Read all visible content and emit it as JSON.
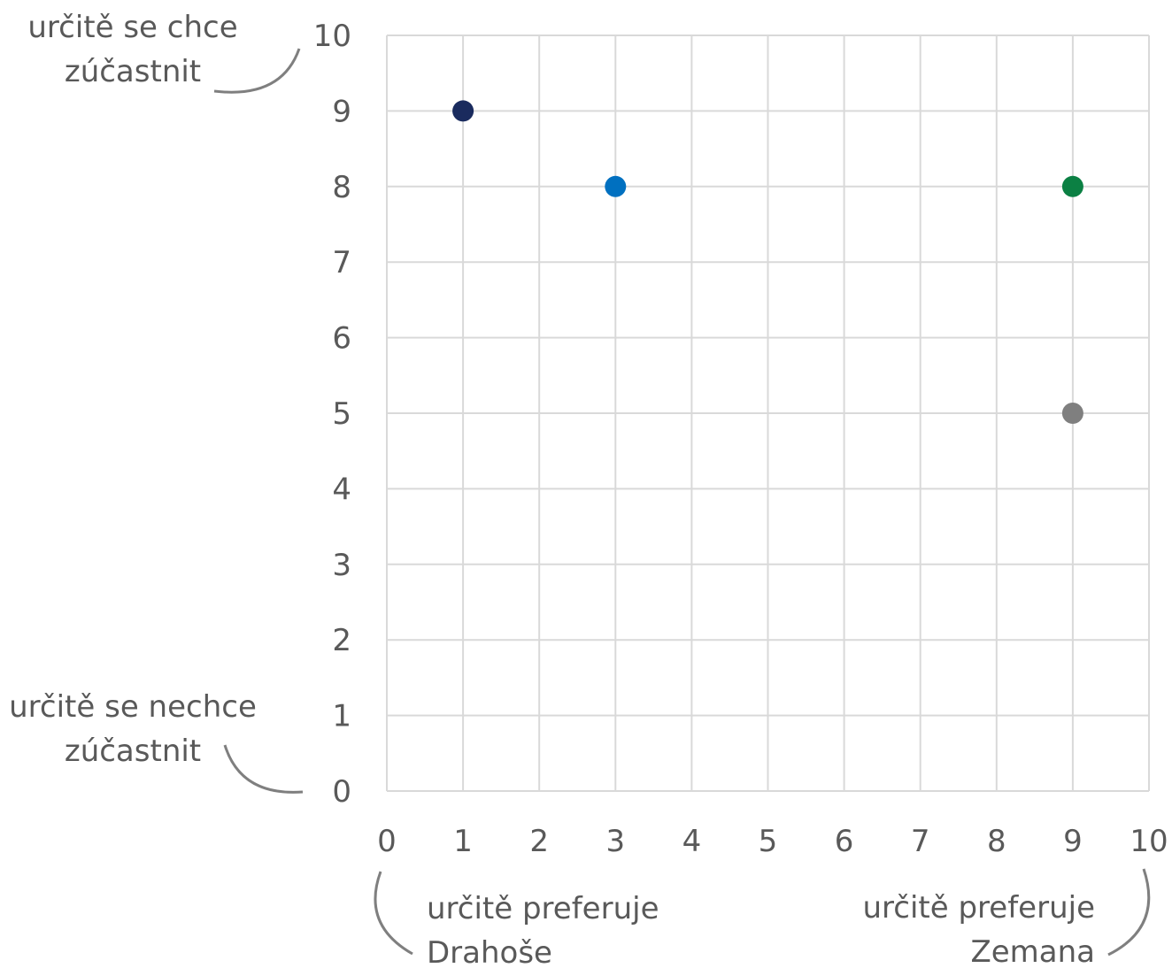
{
  "chart_data": {
    "type": "scatter",
    "xlim": [
      0,
      10
    ],
    "ylim": [
      0,
      10
    ],
    "x_ticks": [
      "0",
      "1",
      "2",
      "3",
      "4",
      "5",
      "6",
      "7",
      "8",
      "9",
      "10"
    ],
    "y_ticks": [
      "0",
      "1",
      "2",
      "3",
      "4",
      "5",
      "6",
      "7",
      "8",
      "9",
      "10"
    ],
    "grid": true,
    "legend": "none",
    "points": [
      {
        "x": 1,
        "y": 9,
        "color": "#1a2b5e"
      },
      {
        "x": 3,
        "y": 8,
        "color": "#0070c0"
      },
      {
        "x": 9,
        "y": 8,
        "color": "#0b8043"
      },
      {
        "x": 9,
        "y": 5,
        "color": "#7f7f7f"
      }
    ],
    "annotations": {
      "y_top_line1": "určitě se chce",
      "y_top_line2": "zúčastnit",
      "y_bottom_line1": "určitě se nechce",
      "y_bottom_line2": "zúčastnit",
      "x_left_line1": "určitě preferuje",
      "x_left_line2": "Drahoše",
      "x_right_line1": "určitě preferuje",
      "x_right_line2": "Zemana"
    }
  }
}
